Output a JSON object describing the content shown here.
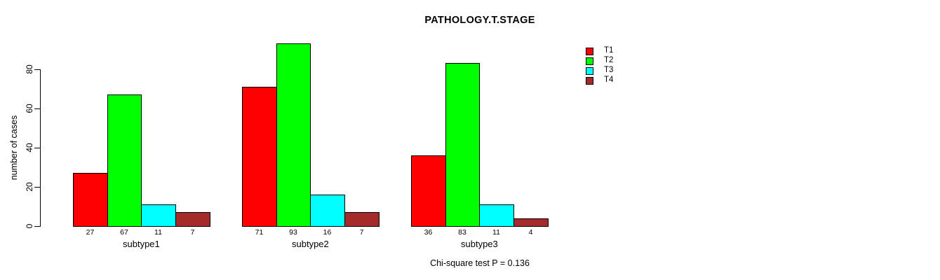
{
  "chart_data": {
    "type": "bar",
    "title": "PATHOLOGY.T.STAGE",
    "ylabel": "number of cases",
    "xlabel": "",
    "categories": [
      "subtype1",
      "subtype2",
      "subtype3"
    ],
    "series": [
      {
        "name": "T1",
        "color": "#FF0000",
        "values": [
          27,
          71,
          36
        ]
      },
      {
        "name": "T2",
        "color": "#00FF00",
        "values": [
          67,
          93,
          83
        ]
      },
      {
        "name": "T3",
        "color": "#00FFFF",
        "values": [
          11,
          16,
          11
        ]
      },
      {
        "name": "T4",
        "color": "#A52A2A",
        "values": [
          7,
          7,
          4
        ]
      }
    ],
    "bar_value_labels": [
      [
        "27",
        "67",
        "11",
        "7"
      ],
      [
        "71",
        "93",
        "16",
        "7"
      ],
      [
        "36",
        "83",
        "11",
        "4"
      ]
    ],
    "yticks": [
      0,
      20,
      40,
      60,
      80
    ],
    "ylim": [
      0,
      93
    ],
    "grid": false,
    "legend_position": "right",
    "legend_entries": [
      "T1",
      "T2",
      "T3",
      "T4"
    ],
    "annotation": "Chi-square test P = 0.136"
  }
}
